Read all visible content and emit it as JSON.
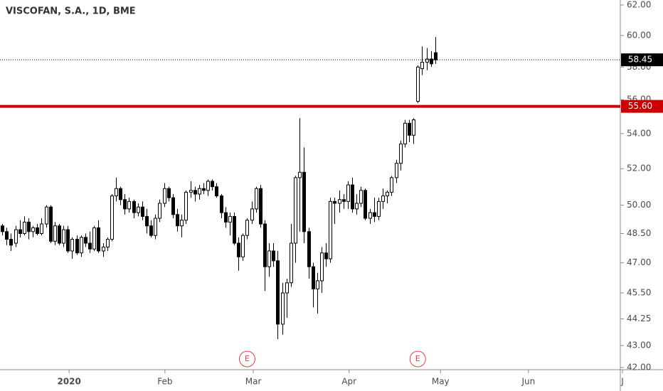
{
  "chart_data": {
    "type": "candlestick",
    "title": "VISCOFAN, S.A., 1D, BME",
    "log_scale": true,
    "ylim": [
      41.9,
      62.33
    ],
    "yticks": [
      {
        "value": 42,
        "label": "42.00"
      },
      {
        "value": 43,
        "label": "43.00"
      },
      {
        "value": 44.25,
        "label": "44.25"
      },
      {
        "value": 45.5,
        "label": "45.50"
      },
      {
        "value": 47,
        "label": "47.00"
      },
      {
        "value": 48.5,
        "label": "48.50"
      },
      {
        "value": 50,
        "label": "50.00"
      },
      {
        "value": 52,
        "label": "52.00"
      },
      {
        "value": 54,
        "label": "54.00"
      },
      {
        "value": 56,
        "label": "56.00"
      },
      {
        "value": 58,
        "label": "58.00"
      },
      {
        "value": 60,
        "label": "60.00"
      },
      {
        "value": 62,
        "label": "62.00"
      }
    ],
    "xlim": [
      -0.5,
      141.3
    ],
    "xticks": [
      {
        "value": 15.3,
        "label": "2020"
      },
      {
        "value": 37.2,
        "label": "Feb"
      },
      {
        "value": 57.4,
        "label": "Mar"
      },
      {
        "value": 79.3,
        "label": "Apr"
      },
      {
        "value": 100.2,
        "label": "May"
      },
      {
        "value": 120.3,
        "label": "Jun"
      },
      {
        "value": 141.8,
        "label": "J"
      }
    ],
    "up_color": "#ffffff",
    "down_color": "#000000",
    "level": {
      "value": 55.6,
      "label": "55.60",
      "color": "#cc0000"
    },
    "events": [
      {
        "label": "E",
        "x": 56
      },
      {
        "label": "E",
        "x": 95
      }
    ],
    "candles": [
      [
        48.9,
        49.0,
        48.4,
        48.6
      ],
      [
        48.6,
        48.8,
        47.9,
        48.2
      ],
      [
        48.2,
        48.5,
        47.6,
        47.9
      ],
      [
        48.0,
        48.9,
        47.8,
        48.7
      ],
      [
        48.7,
        49.2,
        48.3,
        48.5
      ],
      [
        48.5,
        49.4,
        48.4,
        49.1
      ],
      [
        49.1,
        49.3,
        48.2,
        48.6
      ],
      [
        48.6,
        48.9,
        48.3,
        48.8
      ],
      [
        48.8,
        49.0,
        48.4,
        48.5
      ],
      [
        48.5,
        49.3,
        48.4,
        49.0
      ],
      [
        49.0,
        50.0,
        48.8,
        49.9
      ],
      [
        49.9,
        50.0,
        48.0,
        48.1
      ],
      [
        48.1,
        49.1,
        47.9,
        48.9
      ],
      [
        48.9,
        49.0,
        47.9,
        48.0
      ],
      [
        48.0,
        48.9,
        47.8,
        48.7
      ],
      [
        48.7,
        48.9,
        47.5,
        47.6
      ],
      [
        47.6,
        48.3,
        47.2,
        48.2
      ],
      [
        48.2,
        48.4,
        47.4,
        47.5
      ],
      [
        47.5,
        48.4,
        47.3,
        48.3
      ],
      [
        48.3,
        48.5,
        47.8,
        48.0
      ],
      [
        48.0,
        48.6,
        47.5,
        47.7
      ],
      [
        47.7,
        48.9,
        47.6,
        48.8
      ],
      [
        48.8,
        49.2,
        47.5,
        47.6
      ],
      [
        47.6,
        48.0,
        47.3,
        47.8
      ],
      [
        47.8,
        48.3,
        47.6,
        48.2
      ],
      [
        48.2,
        50.6,
        48.1,
        50.5
      ],
      [
        50.5,
        51.5,
        50.2,
        50.9
      ],
      [
        50.9,
        51.0,
        50.0,
        50.3
      ],
      [
        50.3,
        50.6,
        49.5,
        49.8
      ],
      [
        49.8,
        50.4,
        49.6,
        50.2
      ],
      [
        50.2,
        50.3,
        49.3,
        49.6
      ],
      [
        49.6,
        50.1,
        49.4,
        49.9
      ],
      [
        49.9,
        50.2,
        49.2,
        49.4
      ],
      [
        49.4,
        49.8,
        48.5,
        48.9
      ],
      [
        48.9,
        49.2,
        48.3,
        48.4
      ],
      [
        48.4,
        49.5,
        48.2,
        49.3
      ],
      [
        49.3,
        50.3,
        49.1,
        50.1
      ],
      [
        50.1,
        51.2,
        49.9,
        50.9
      ],
      [
        50.9,
        51.0,
        50.2,
        50.4
      ],
      [
        50.4,
        50.6,
        49.3,
        49.5
      ],
      [
        49.5,
        49.8,
        48.6,
        48.9
      ],
      [
        48.9,
        49.5,
        48.3,
        49.2
      ],
      [
        49.2,
        50.8,
        49.0,
        50.7
      ],
      [
        50.7,
        51.3,
        50.4,
        50.8
      ],
      [
        50.8,
        51.0,
        50.2,
        50.6
      ],
      [
        50.6,
        51.1,
        50.3,
        50.9
      ],
      [
        50.9,
        51.2,
        50.6,
        50.8
      ],
      [
        50.8,
        51.4,
        50.5,
        51.3
      ],
      [
        51.3,
        51.4,
        50.8,
        51.0
      ],
      [
        51.0,
        51.2,
        50.4,
        50.5
      ],
      [
        50.5,
        50.6,
        49.3,
        49.6
      ],
      [
        49.6,
        49.9,
        48.8,
        49.1
      ],
      [
        49.1,
        49.6,
        48.4,
        49.4
      ],
      [
        49.4,
        49.6,
        47.9,
        48.0
      ],
      [
        48.0,
        48.3,
        46.6,
        47.3
      ],
      [
        47.3,
        48.5,
        47.1,
        48.4
      ],
      [
        48.4,
        49.3,
        48.2,
        49.2
      ],
      [
        49.2,
        50.2,
        49.0,
        49.8
      ],
      [
        49.8,
        51.0,
        49.6,
        50.9
      ],
      [
        50.9,
        51.1,
        48.8,
        49.0
      ],
      [
        49.0,
        49.2,
        45.6,
        46.8
      ],
      [
        46.8,
        48.0,
        46.3,
        47.6
      ],
      [
        47.6,
        48.0,
        46.8,
        47.1
      ],
      [
        47.1,
        47.6,
        43.3,
        44.0
      ],
      [
        44.0,
        46.0,
        43.5,
        45.5
      ],
      [
        45.5,
        46.2,
        44.3,
        46.0
      ],
      [
        46.0,
        49.0,
        45.8,
        48.0
      ],
      [
        48.0,
        51.6,
        47.0,
        51.5
      ],
      [
        51.5,
        54.9,
        48.6,
        51.8
      ],
      [
        51.8,
        53.2,
        48.0,
        48.6
      ],
      [
        48.6,
        48.8,
        46.2,
        46.8
      ],
      [
        46.8,
        47.0,
        44.8,
        45.7
      ],
      [
        45.7,
        46.5,
        44.5,
        46.1
      ],
      [
        46.1,
        47.8,
        45.5,
        47.5
      ],
      [
        47.5,
        48.0,
        46.8,
        47.2
      ],
      [
        47.2,
        50.4,
        47.0,
        50.2
      ],
      [
        50.2,
        50.4,
        49.0,
        50.1
      ],
      [
        50.1,
        50.8,
        49.6,
        50.3
      ],
      [
        50.3,
        50.6,
        49.8,
        50.2
      ],
      [
        50.2,
        51.3,
        49.8,
        51.1
      ],
      [
        51.1,
        51.5,
        49.6,
        49.8
      ],
      [
        49.8,
        50.6,
        49.5,
        50.1
      ],
      [
        50.1,
        51.0,
        49.9,
        50.8
      ],
      [
        50.8,
        50.9,
        49.2,
        49.3
      ],
      [
        49.3,
        49.8,
        49.0,
        49.6
      ],
      [
        49.6,
        50.4,
        49.1,
        49.4
      ],
      [
        49.4,
        50.4,
        49.2,
        50.2
      ],
      [
        50.2,
        50.9,
        49.8,
        50.5
      ],
      [
        50.5,
        50.8,
        50.1,
        50.7
      ],
      [
        50.7,
        51.6,
        50.5,
        51.5
      ],
      [
        51.5,
        52.5,
        51.2,
        52.3
      ],
      [
        52.3,
        53.6,
        51.9,
        53.4
      ],
      [
        53.4,
        54.8,
        53.2,
        54.6
      ],
      [
        54.6,
        54.8,
        53.5,
        53.9
      ],
      [
        53.9,
        54.9,
        53.4,
        54.8
      ],
      [
        55.9,
        58.1,
        55.8,
        58.0
      ],
      [
        57.9,
        59.3,
        57.5,
        58.3
      ],
      [
        58.3,
        59.2,
        57.8,
        58.5
      ],
      [
        58.5,
        59.0,
        58.0,
        58.2
      ],
      [
        58.9,
        59.9,
        58.2,
        58.45
      ]
    ]
  }
}
